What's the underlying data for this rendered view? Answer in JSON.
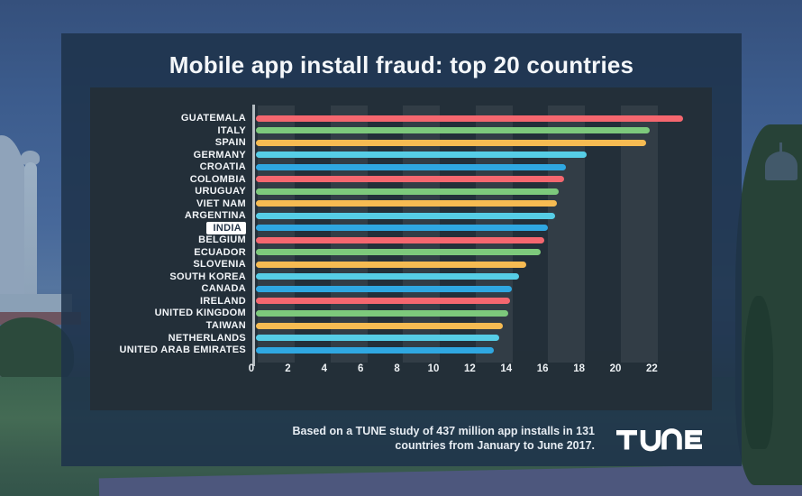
{
  "title": "Mobile app install fraud: top 20 countries",
  "footer": {
    "line1": "Based on a TUNE study of 437 million app installs in 131",
    "line2": "countries from January to June 2017."
  },
  "logo": {
    "text": "TUNE"
  },
  "colors": {
    "card_overlay": "#1e324b",
    "panel": "#242e37",
    "stripe": "#3d4a54",
    "axis_line": "#ccd3d8",
    "label_text": "#f2f5f8",
    "highlight_bg": "#ffffff",
    "highlight_text": "#26374a",
    "bar_red": "#f5676f",
    "bar_green": "#7dc97c",
    "bar_yellow": "#f6bb52",
    "bar_cyan": "#56cde6",
    "bar_blue": "#2fa7e1"
  },
  "chart_data": {
    "type": "bar",
    "orientation": "horizontal",
    "title": "Mobile app install fraud: top 20 countries",
    "xlabel": "",
    "ylabel": "",
    "categories": [
      "GUATEMALA",
      "ITALY",
      "SPAIN",
      "GERMANY",
      "CROATIA",
      "COLOMBIA",
      "URUGUAY",
      "VIET NAM",
      "ARGENTINA",
      "INDIA",
      "BELGIUM",
      "ECUADOR",
      "SLOVENIA",
      "SOUTH KOREA",
      "CANADA",
      "IRELAND",
      "UNITED KINGDOM",
      "TAIWAN",
      "NETHERLANDS",
      "UNITED ARAB EMIRATES"
    ],
    "values": [
      23.7,
      21.9,
      21.7,
      18.4,
      17.3,
      17.2,
      16.9,
      16.8,
      16.7,
      16.3,
      16.1,
      15.9,
      15.1,
      14.7,
      14.3,
      14.2,
      14.1,
      13.8,
      13.6,
      13.3
    ],
    "highlighted_category": "INDIA",
    "bar_palette": [
      "#f5676f",
      "#7dc97c",
      "#f6bb52",
      "#56cde6",
      "#2fa7e1"
    ],
    "xticks": [
      0,
      2,
      4,
      6,
      8,
      10,
      12,
      14,
      16,
      18,
      20,
      22
    ],
    "xlim": [
      0,
      25.2
    ],
    "grid": "vertical-stripe-bands",
    "legend": "none"
  }
}
